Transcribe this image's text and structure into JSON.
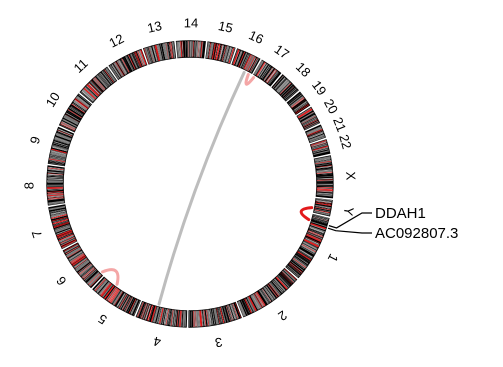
{
  "chart_data": {
    "type": "circos",
    "chromosomes": [
      "1",
      "2",
      "3",
      "4",
      "5",
      "6",
      "7",
      "8",
      "9",
      "10",
      "11",
      "12",
      "13",
      "14",
      "15",
      "16",
      "17",
      "18",
      "19",
      "20",
      "21",
      "22",
      "X",
      "Y"
    ],
    "chromosome_sizes_mb": [
      249,
      242,
      198,
      190,
      181,
      171,
      159,
      145,
      138,
      134,
      135,
      133,
      114,
      107,
      102,
      90,
      83,
      80,
      59,
      64,
      47,
      51,
      156,
      57
    ],
    "links": [
      {
        "from": {
          "chr": "1",
          "pos_mb": 25
        },
        "to": {
          "chr": "Y",
          "pos_mb": 40
        },
        "color": "#e31a1c",
        "width": 3
      },
      {
        "from": {
          "chr": "4",
          "pos_mb": 120
        },
        "to": {
          "chr": "16",
          "pos_mb": 60
        },
        "color": "#bdbdbd",
        "width": 3
      },
      {
        "from": {
          "chr": "5",
          "pos_mb": 120
        },
        "to": {
          "chr": "6",
          "pos_mb": 10
        },
        "color": "#f4a6a6",
        "width": 3
      },
      {
        "from": {
          "chr": "16",
          "pos_mb": 80
        },
        "to": {
          "chr": "17",
          "pos_mb": 5
        },
        "color": "#f4a6a6",
        "width": 3
      }
    ],
    "gene_labels": [
      {
        "name": "DDAH1",
        "chr": "1",
        "pos_mb": 25
      },
      {
        "name": "AC092807.3",
        "chr": "1",
        "pos_mb": 35
      }
    ]
  },
  "colors": {
    "band_dark": "#000000",
    "band_red": "#e31a1c",
    "ring_fill": "#ffffff"
  }
}
